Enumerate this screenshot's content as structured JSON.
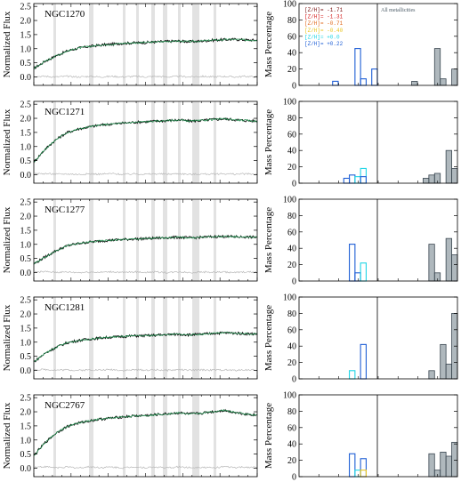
{
  "figure": {
    "spectra_ylabel": "Normalized Flux",
    "hist_ylabel": "Mass Percentage",
    "spectra_yticks": [
      "2.5",
      "2.0",
      "1.5",
      "1.0",
      "0.5",
      "0.0"
    ],
    "hist_yticks": [
      "100",
      "80",
      "60",
      "40",
      "20",
      "0"
    ],
    "all_metallicities_label": "All metallicities",
    "legend": [
      {
        "label": "[Z/H]= -1.71",
        "color": "#7a1212"
      },
      {
        "label": "[Z/H]= -1.31",
        "color": "#d62020"
      },
      {
        "label": "[Z/H]= -0.71",
        "color": "#e0691c"
      },
      {
        "label": "[Z/H]= -0.40",
        "color": "#e8c520"
      },
      {
        "label": "[Z/H]= +0.0",
        "color": "#1fd6e6"
      },
      {
        "label": "[Z/H]= +0.22",
        "color": "#1f5fd6"
      }
    ],
    "colors": {
      "observed": "#000000",
      "model": "#1f8a4c",
      "residual": "#b8b8b8",
      "masked_band": "#e2e2e2",
      "all_metallicity_bars": "#6e7d87"
    }
  },
  "chart_data": [
    {
      "type": "line",
      "galaxy": "NGC1270",
      "ylim": [
        -0.3,
        2.6
      ],
      "series": [
        {
          "role": "observed",
          "values": [
            0.3,
            0.55,
            0.75,
            0.92,
            1.02,
            1.08,
            1.13,
            1.16,
            1.19,
            1.21,
            1.22,
            1.24,
            1.26,
            1.27,
            1.25,
            1.27,
            1.3,
            1.32,
            1.33,
            1.31,
            1.3
          ]
        },
        {
          "role": "residual",
          "values": [
            0.02,
            0.02,
            0.0,
            0.02,
            0.0,
            0.02,
            0.0,
            0.02,
            0.0,
            0.02,
            0.0,
            0.02,
            0.0,
            0.02,
            0.0,
            0.02,
            0.0,
            0.02,
            0.0,
            0.02,
            0.0
          ]
        }
      ],
      "masked_band_count": 9
    },
    {
      "type": "line",
      "galaxy": "NGC1271",
      "ylim": [
        -0.3,
        2.6
      ],
      "series": [
        {
          "role": "observed",
          "values": [
            0.45,
            0.9,
            1.25,
            1.5,
            1.62,
            1.7,
            1.76,
            1.8,
            1.83,
            1.86,
            1.88,
            1.9,
            1.92,
            1.94,
            1.9,
            1.92,
            1.96,
            1.98,
            1.95,
            1.92,
            1.9
          ]
        },
        {
          "role": "residual",
          "values": [
            0.03,
            0.04,
            0.02,
            0.03,
            0.01,
            0.03,
            0.02,
            0.04,
            0.01,
            0.03,
            0.02,
            0.03,
            0.02,
            0.04,
            0.01,
            0.03,
            0.02,
            0.04,
            0.02,
            0.03,
            0.02
          ]
        }
      ],
      "masked_band_count": 9
    },
    {
      "type": "line",
      "galaxy": "NGC1277",
      "ylim": [
        -0.3,
        2.6
      ],
      "series": [
        {
          "role": "observed",
          "values": [
            0.3,
            0.55,
            0.78,
            0.95,
            1.03,
            1.08,
            1.12,
            1.15,
            1.17,
            1.19,
            1.2,
            1.22,
            1.24,
            1.25,
            1.23,
            1.25,
            1.27,
            1.28,
            1.27,
            1.26,
            1.25
          ]
        },
        {
          "role": "residual",
          "values": [
            0.02,
            0.03,
            0.01,
            0.02,
            0.0,
            0.02,
            0.01,
            0.03,
            0.0,
            0.02,
            0.01,
            0.02,
            0.0,
            0.03,
            0.0,
            0.02,
            0.01,
            0.02,
            0.0,
            0.02,
            0.01
          ]
        }
      ],
      "masked_band_count": 9
    },
    {
      "type": "line",
      "galaxy": "NGC1281",
      "ylim": [
        -0.3,
        2.6
      ],
      "series": [
        {
          "role": "observed",
          "values": [
            0.3,
            0.6,
            0.82,
            0.98,
            1.06,
            1.11,
            1.15,
            1.18,
            1.2,
            1.22,
            1.23,
            1.25,
            1.27,
            1.28,
            1.26,
            1.28,
            1.31,
            1.33,
            1.32,
            1.3,
            1.29
          ]
        },
        {
          "role": "residual",
          "values": [
            0.02,
            0.03,
            0.01,
            0.02,
            0.0,
            0.02,
            0.01,
            0.03,
            0.0,
            0.02,
            0.01,
            0.02,
            0.0,
            0.03,
            0.0,
            0.02,
            0.01,
            0.02,
            0.0,
            0.02,
            0.01
          ]
        }
      ],
      "masked_band_count": 9
    },
    {
      "type": "line",
      "galaxy": "NGC2767",
      "ylim": [
        -0.3,
        2.6
      ],
      "series": [
        {
          "role": "observed",
          "values": [
            0.45,
            0.9,
            1.25,
            1.48,
            1.6,
            1.68,
            1.74,
            1.78,
            1.82,
            1.85,
            1.87,
            1.9,
            1.93,
            1.96,
            1.92,
            1.95,
            2.0,
            2.05,
            1.98,
            1.92,
            1.88
          ]
        },
        {
          "role": "residual",
          "values": [
            0.04,
            0.05,
            0.02,
            0.04,
            0.01,
            0.05,
            0.02,
            0.04,
            0.01,
            0.05,
            0.02,
            0.04,
            0.01,
            0.05,
            0.02,
            0.04,
            0.01,
            0.05,
            0.02,
            0.04,
            0.02
          ]
        }
      ],
      "masked_band_count": 9
    },
    {
      "type": "bar",
      "galaxy": "NGC1270",
      "ylim": [
        0,
        100
      ],
      "by_metallicity": [
        {
          "bin": 6,
          "value": 5,
          "color": "#1f5fd6"
        },
        {
          "bin": 10,
          "value": 45,
          "color": "#1f5fd6"
        },
        {
          "bin": 11,
          "value": 8,
          "color": "#1f5fd6"
        },
        {
          "bin": 13,
          "value": 20,
          "color": "#1f5fd6"
        }
      ],
      "all_metallicities": [
        {
          "bin": 6,
          "value": 5
        },
        {
          "bin": 10,
          "value": 45
        },
        {
          "bin": 11,
          "value": 8
        },
        {
          "bin": 13,
          "value": 20
        }
      ]
    },
    {
      "type": "bar",
      "galaxy": "NGC1271",
      "ylim": [
        0,
        100
      ],
      "by_metallicity": [
        {
          "bin": 8,
          "value": 6,
          "color": "#1f5fd6"
        },
        {
          "bin": 9,
          "value": 10,
          "color": "#1f5fd6"
        },
        {
          "bin": 10,
          "value": 8,
          "color": "#1fd6e6"
        },
        {
          "bin": 11,
          "value": 18,
          "color": "#1fd6e6"
        },
        {
          "bin": 11,
          "value": 8,
          "color": "#1f5fd6"
        }
      ],
      "all_metallicities": [
        {
          "bin": 8,
          "value": 6
        },
        {
          "bin": 9,
          "value": 10
        },
        {
          "bin": 10,
          "value": 12
        },
        {
          "bin": 12,
          "value": 40
        },
        {
          "bin": 13,
          "value": 18
        }
      ]
    },
    {
      "type": "bar",
      "galaxy": "NGC1277",
      "ylim": [
        0,
        100
      ],
      "by_metallicity": [
        {
          "bin": 9,
          "value": 45,
          "color": "#1f5fd6"
        },
        {
          "bin": 10,
          "value": 10,
          "color": "#1f5fd6"
        },
        {
          "bin": 11,
          "value": 22,
          "color": "#1fd6e6"
        }
      ],
      "all_metallicities": [
        {
          "bin": 9,
          "value": 45
        },
        {
          "bin": 10,
          "value": 10
        },
        {
          "bin": 12,
          "value": 52
        },
        {
          "bin": 13,
          "value": 32
        }
      ]
    },
    {
      "type": "bar",
      "galaxy": "NGC1281",
      "ylim": [
        0,
        100
      ],
      "by_metallicity": [
        {
          "bin": 9,
          "value": 10,
          "color": "#1fd6e6"
        },
        {
          "bin": 11,
          "value": 42,
          "color": "#1f5fd6"
        }
      ],
      "all_metallicities": [
        {
          "bin": 9,
          "value": 10
        },
        {
          "bin": 11,
          "value": 42
        },
        {
          "bin": 12,
          "value": 18
        },
        {
          "bin": 13,
          "value": 80
        }
      ]
    },
    {
      "type": "bar",
      "galaxy": "NGC2767",
      "ylim": [
        0,
        100
      ],
      "by_metallicity": [
        {
          "bin": 9,
          "value": 28,
          "color": "#1f5fd6"
        },
        {
          "bin": 10,
          "value": 8,
          "color": "#1fd6e6"
        },
        {
          "bin": 11,
          "value": 22,
          "color": "#1f5fd6"
        },
        {
          "bin": 11,
          "value": 8,
          "color": "#e8c520"
        }
      ],
      "all_metallicities": [
        {
          "bin": 9,
          "value": 28
        },
        {
          "bin": 10,
          "value": 8
        },
        {
          "bin": 11,
          "value": 30
        },
        {
          "bin": 12,
          "value": 25
        },
        {
          "bin": 13,
          "value": 42
        }
      ]
    }
  ]
}
